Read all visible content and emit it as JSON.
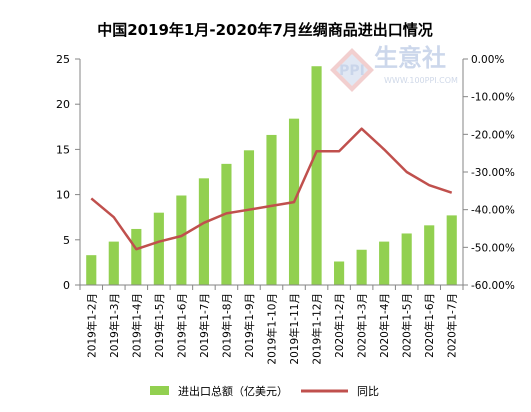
{
  "chart_data": {
    "type": "bar+line",
    "title": "中国2019年1月-2020年7月丝绸商品进出口情况",
    "categories": [
      "2019年1-2月",
      "2019年1-3月",
      "2019年1-4月",
      "2019年1-5月",
      "2019年1-6月",
      "2019年1-7月",
      "2019年1-8月",
      "2019年1-9月",
      "2019年1-10月",
      "2019年1-11月",
      "2019年1-12月",
      "2020年1-2月",
      "2020年1-3月",
      "2020年1-4月",
      "2020年1-5月",
      "2020年1-6月",
      "2020年1-7月"
    ],
    "series": [
      {
        "name": "进出口总额（亿美元）",
        "type": "bar",
        "axis": "left",
        "values": [
          3.3,
          4.8,
          6.2,
          8.0,
          9.9,
          11.8,
          13.4,
          14.9,
          16.6,
          18.4,
          24.2,
          2.6,
          3.9,
          4.8,
          5.7,
          6.6,
          7.7
        ]
      },
      {
        "name": "同比",
        "type": "line",
        "axis": "right",
        "values": [
          -37.0,
          -42.0,
          -50.5,
          -48.5,
          -47.0,
          -43.5,
          -41.0,
          -40.0,
          -39.0,
          -38.0,
          -24.5,
          -24.5,
          -18.5,
          -24.0,
          -30.0,
          -33.5,
          -35.5
        ]
      }
    ],
    "y_left": {
      "min": 0,
      "max": 25,
      "ticks": [
        0,
        5,
        10,
        15,
        20,
        25
      ]
    },
    "y_right": {
      "min": -60,
      "max": 0,
      "ticks": [
        0,
        -10,
        -20,
        -30,
        -40,
        -50,
        -60
      ],
      "tick_labels": [
        "0.00%",
        "-10.00%",
        "-20.00%",
        "-30.00%",
        "-40.00%",
        "-50.00%",
        "-60.00%"
      ]
    },
    "grid": false,
    "legend_position": "bottom",
    "colors": {
      "bar": "#92d050",
      "line": "#c0504d",
      "axis": "#868686"
    }
  },
  "watermark": {
    "brand": "生意社",
    "logo_text": "PPI",
    "url": "WWW.100PPI.COM"
  }
}
